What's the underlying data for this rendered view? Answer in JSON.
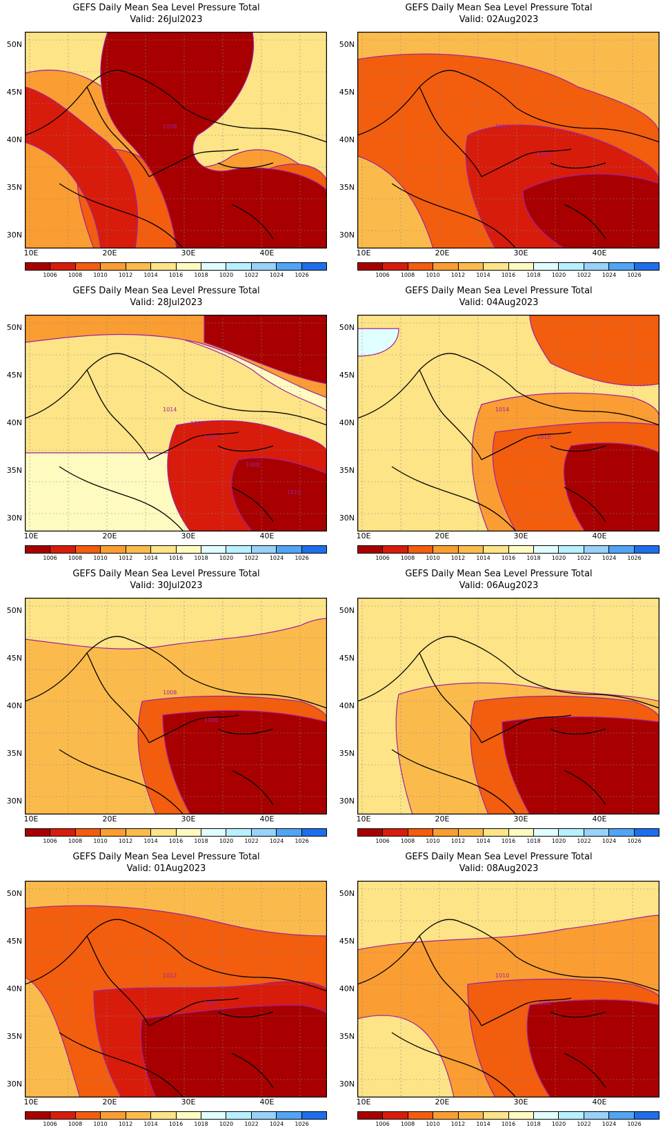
{
  "colorbar": {
    "levels": [
      "1006",
      "1008",
      "1010",
      "1012",
      "1014",
      "1016",
      "1018",
      "1020",
      "1022",
      "1024",
      "1026"
    ],
    "colors": [
      "#a80000",
      "#d81c0c",
      "#f25d0e",
      "#fa9d32",
      "#fbbb4c",
      "#fde487",
      "#fffbc0",
      "#e1feff",
      "#b7f1ff",
      "#96d2fa",
      "#50a5f5",
      "#1e6eeb"
    ]
  },
  "axes": {
    "lat_labels": [
      "50N",
      "45N",
      "40N",
      "35N",
      "30N"
    ],
    "lon_labels": [
      "10E",
      "20E",
      "30E",
      "40E"
    ]
  },
  "panels": [
    {
      "title": "GEFS Daily Mean Sea Level Pressure Total",
      "valid": "Valid: 26Jul2023",
      "contour_labels": [
        "1008"
      ],
      "scheme": 0
    },
    {
      "title": "GEFS Daily Mean Sea Level Pressure Total",
      "valid": "Valid: 02Aug2023",
      "contour_labels": [
        "1010",
        "1010"
      ],
      "scheme": 1
    },
    {
      "title": "GEFS Daily Mean Sea Level Pressure Total",
      "valid": "Valid: 28Jul2023",
      "contour_labels": [
        "1014",
        "1010",
        "1008",
        "1010",
        "1008"
      ],
      "scheme": 2
    },
    {
      "title": "GEFS Daily Mean Sea Level Pressure Total",
      "valid": "Valid: 04Aug2023",
      "contour_labels": [
        "1014",
        "1010"
      ],
      "scheme": 3
    },
    {
      "title": "GEFS Daily Mean Sea Level Pressure Total",
      "valid": "Valid: 30Jul2023",
      "contour_labels": [
        "1008",
        "1006"
      ],
      "scheme": 4
    },
    {
      "title": "GEFS Daily Mean Sea Level Pressure Total",
      "valid": "Valid: 06Aug2023",
      "contour_labels": [],
      "scheme": 5
    },
    {
      "title": "GEFS Daily Mean Sea Level Pressure Total",
      "valid": "Valid: 01Aug2023",
      "contour_labels": [
        "1012",
        "1010"
      ],
      "scheme": 6
    },
    {
      "title": "GEFS Daily Mean Sea Level Pressure Total",
      "valid": "Valid: 08Aug2023",
      "contour_labels": [
        "1010",
        "1008"
      ],
      "scheme": 7
    }
  ]
}
